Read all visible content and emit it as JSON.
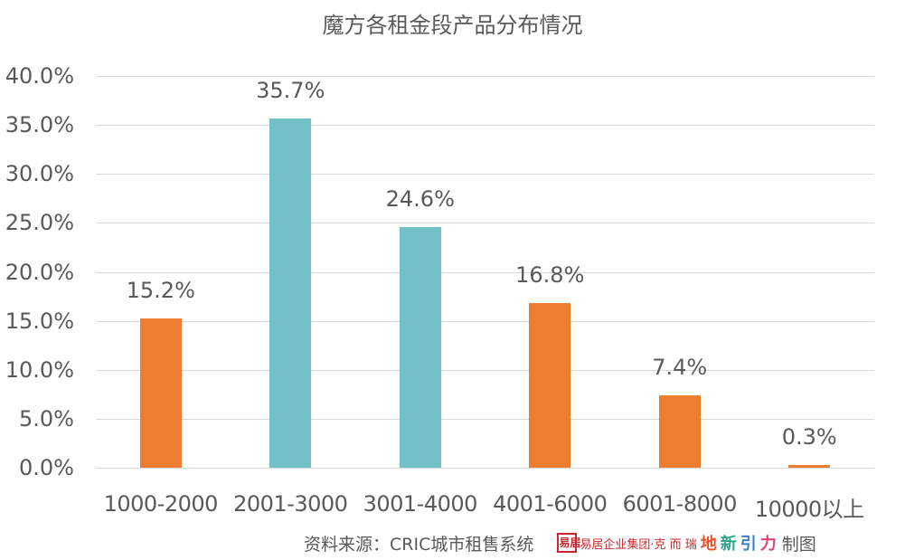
{
  "chart_data": {
    "type": "bar",
    "title": "魔方各租金段产品分布情况",
    "xlabel": "",
    "ylabel": "",
    "categories": [
      "1000-2000",
      "2001-3000",
      "3001-4000",
      "4001-6000",
      "6001-8000",
      "10000以上"
    ],
    "values": [
      15.2,
      35.7,
      24.6,
      16.8,
      7.4,
      0.3
    ],
    "value_labels": [
      "15.2%",
      "35.7%",
      "24.6%",
      "16.8%",
      "7.4%",
      "0.3%"
    ],
    "bar_colors": [
      "#ed7d31",
      "#72bfc5",
      "#72bfc5",
      "#ed7d31",
      "#ed7d31",
      "#ed7d31"
    ],
    "ylim": [
      0,
      40
    ],
    "yticks": [
      0,
      5,
      10,
      15,
      20,
      25,
      30,
      35,
      40
    ],
    "ytick_labels": [
      "0.0%",
      "5.0%",
      "10.0%",
      "15.0%",
      "20.0%",
      "25.0%",
      "30.0%",
      "35.0%",
      "40.0%"
    ],
    "grid": true,
    "legend": null
  },
  "footer": {
    "source": "资料来源：CRIC城市租售系统",
    "logo_seal": "易居",
    "logo_text": "易居企业集团·克 而 瑞",
    "brand_chars": [
      {
        "char": "地",
        "color": "#e8502a"
      },
      {
        "char": "新",
        "color": "#2fa58c"
      },
      {
        "char": "引",
        "color": "#3a7fc4"
      },
      {
        "char": "力",
        "color": "#e0417a"
      }
    ],
    "made_by": "制图"
  },
  "colors": {
    "orange": "#ed7d31",
    "teal": "#72bfc5",
    "grid": "#d9d9d9",
    "text": "#595959"
  }
}
